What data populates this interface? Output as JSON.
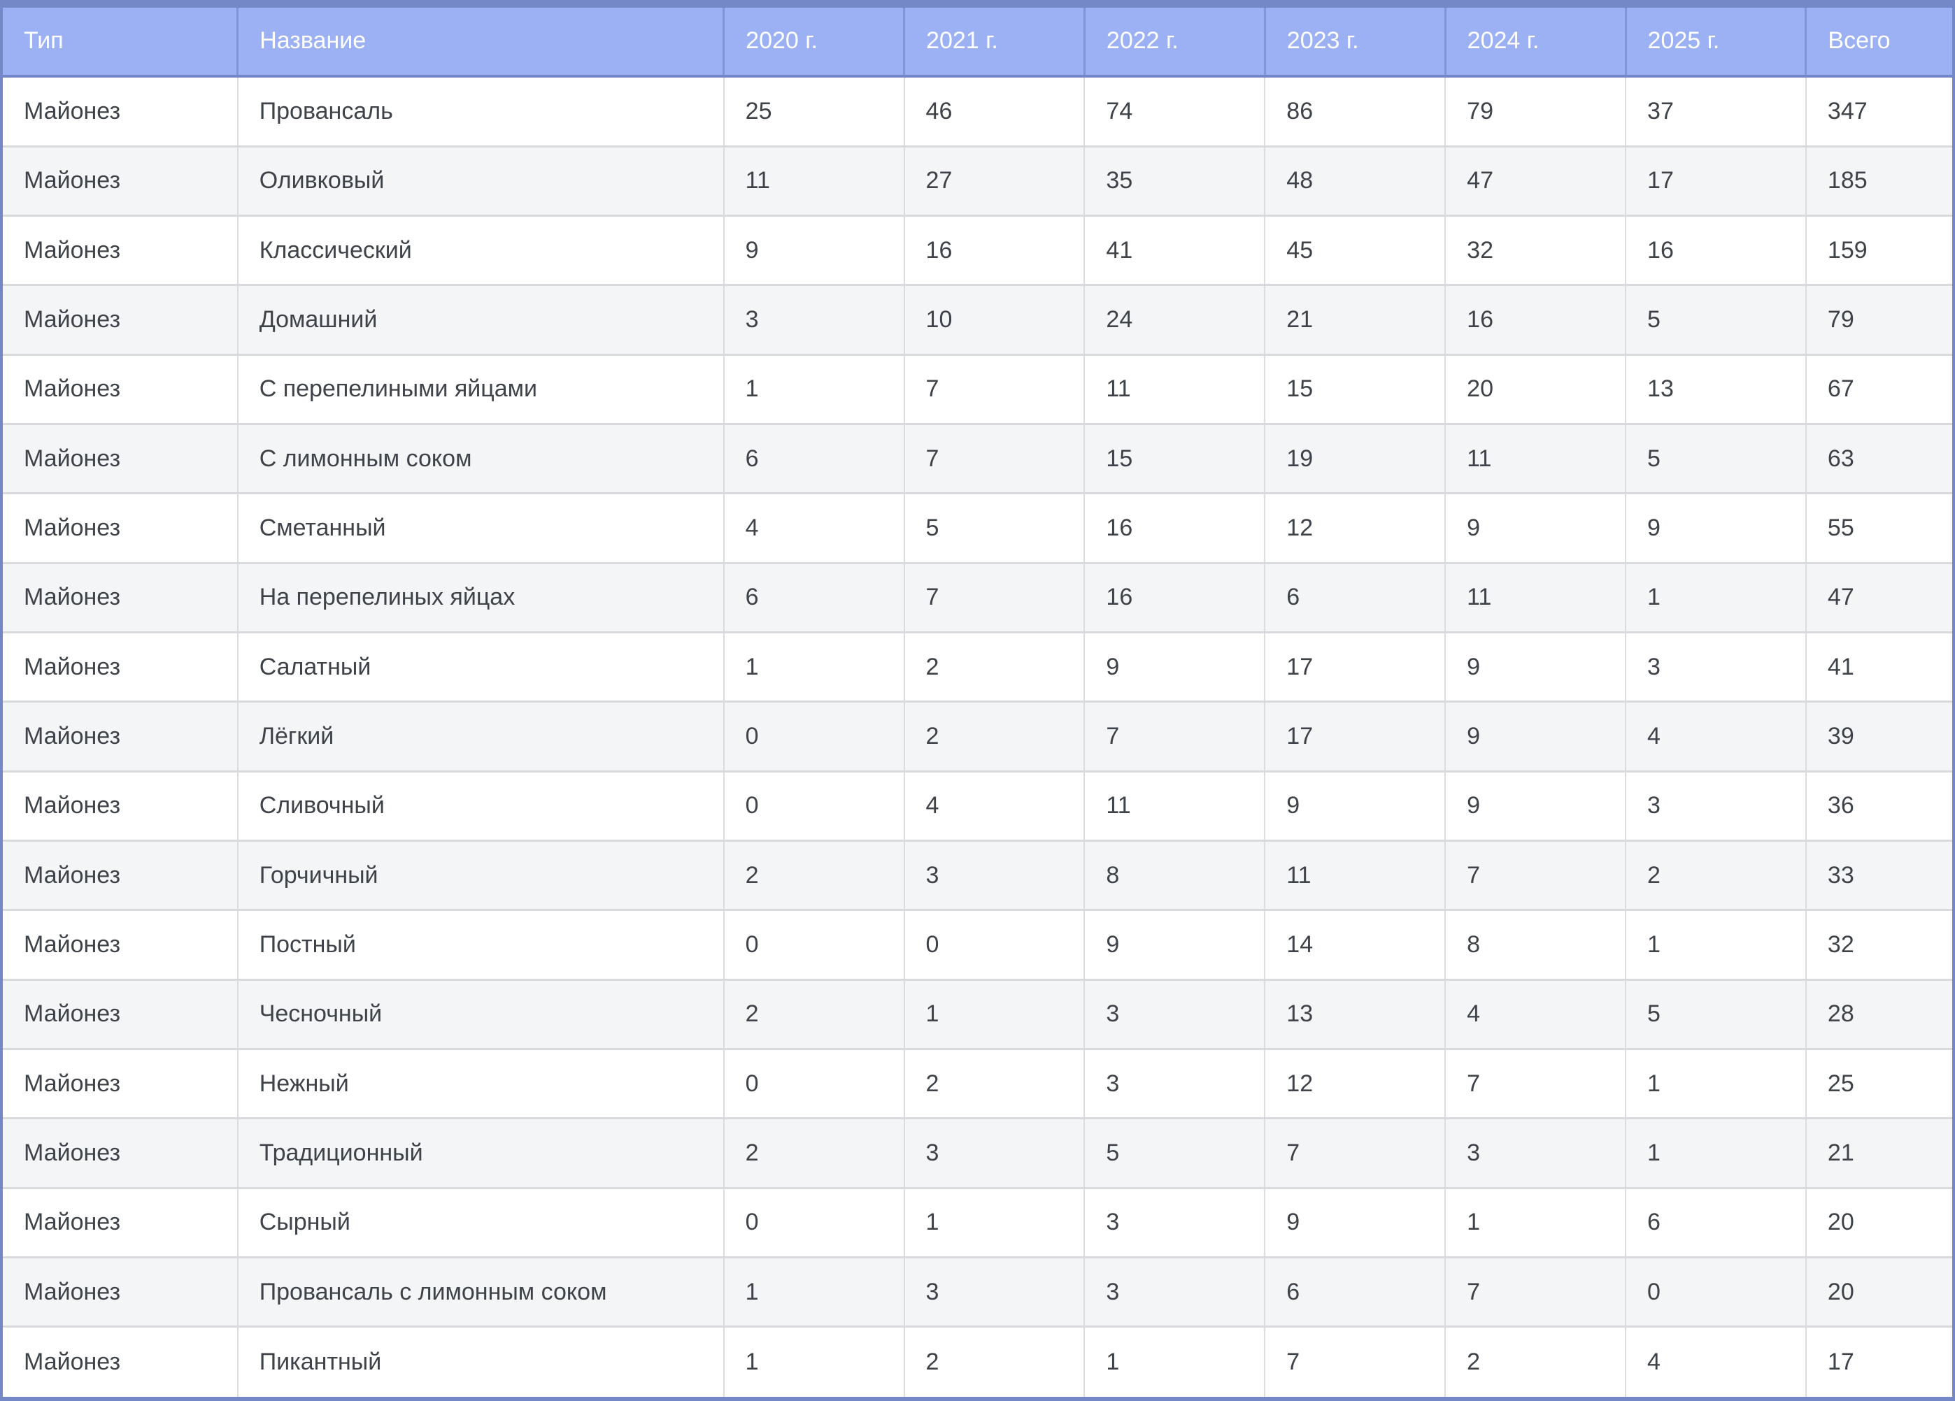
{
  "colors": {
    "header_bg": "#9CB1F3",
    "header_text": "#FFFFFF",
    "header_divider": "#8094D9",
    "outer_border": "#7487C6",
    "body_text": "#3E4349",
    "cell_divider": "#DADCE0",
    "row_divider": "#D8DADD",
    "row_alt_bg": "#F4F5F7",
    "row_bg": "#FFFFFF"
  },
  "table": {
    "columns": [
      {
        "label": "Тип"
      },
      {
        "label": "Название"
      },
      {
        "label": "2020 г."
      },
      {
        "label": "2021 г."
      },
      {
        "label": "2022 г."
      },
      {
        "label": "2023 г."
      },
      {
        "label": "2024 г."
      },
      {
        "label": "2025 г."
      },
      {
        "label": "Всего"
      }
    ],
    "rows": [
      {
        "cells": [
          "Майонез",
          "Провансаль",
          25,
          46,
          74,
          86,
          79,
          37,
          347
        ]
      },
      {
        "cells": [
          "Майонез",
          "Оливковый",
          11,
          27,
          35,
          48,
          47,
          17,
          185
        ]
      },
      {
        "cells": [
          "Майонез",
          "Классический",
          9,
          16,
          41,
          45,
          32,
          16,
          159
        ]
      },
      {
        "cells": [
          "Майонез",
          "Домашний",
          3,
          10,
          24,
          21,
          16,
          5,
          79
        ]
      },
      {
        "cells": [
          "Майонез",
          "С перепелиными яйцами",
          1,
          7,
          11,
          15,
          20,
          13,
          67
        ]
      },
      {
        "cells": [
          "Майонез",
          "С лимонным соком",
          6,
          7,
          15,
          19,
          11,
          5,
          63
        ]
      },
      {
        "cells": [
          "Майонез",
          "Сметанный",
          4,
          5,
          16,
          12,
          9,
          9,
          55
        ]
      },
      {
        "cells": [
          "Майонез",
          "На перепелиных яйцах",
          6,
          7,
          16,
          6,
          11,
          1,
          47
        ]
      },
      {
        "cells": [
          "Майонез",
          "Салатный",
          1,
          2,
          9,
          17,
          9,
          3,
          41
        ]
      },
      {
        "cells": [
          "Майонез",
          "Лёгкий",
          0,
          2,
          7,
          17,
          9,
          4,
          39
        ]
      },
      {
        "cells": [
          "Майонез",
          "Сливочный",
          0,
          4,
          11,
          9,
          9,
          3,
          36
        ]
      },
      {
        "cells": [
          "Майонез",
          "Горчичный",
          2,
          3,
          8,
          11,
          7,
          2,
          33
        ]
      },
      {
        "cells": [
          "Майонез",
          "Постный",
          0,
          0,
          9,
          14,
          8,
          1,
          32
        ]
      },
      {
        "cells": [
          "Майонез",
          "Чесночный",
          2,
          1,
          3,
          13,
          4,
          5,
          28
        ]
      },
      {
        "cells": [
          "Майонез",
          "Нежный",
          0,
          2,
          3,
          12,
          7,
          1,
          25
        ]
      },
      {
        "cells": [
          "Майонез",
          "Традиционный",
          2,
          3,
          5,
          7,
          3,
          1,
          21
        ]
      },
      {
        "cells": [
          "Майонез",
          "Сырный",
          0,
          1,
          3,
          9,
          1,
          6,
          20
        ]
      },
      {
        "cells": [
          "Майонез",
          "Провансаль с лимонным соком",
          1,
          3,
          3,
          6,
          7,
          0,
          20
        ]
      },
      {
        "cells": [
          "Майонез",
          "Пикантный",
          1,
          2,
          1,
          7,
          2,
          4,
          17
        ]
      }
    ]
  },
  "chart_data": {
    "type": "table",
    "title": "",
    "columns": [
      "Тип",
      "Название",
      "2020 г.",
      "2021 г.",
      "2022 г.",
      "2023 г.",
      "2024 г.",
      "2025 г.",
      "Всего"
    ],
    "rows": [
      [
        "Майонез",
        "Провансаль",
        25,
        46,
        74,
        86,
        79,
        37,
        347
      ],
      [
        "Майонез",
        "Оливковый",
        11,
        27,
        35,
        48,
        47,
        17,
        185
      ],
      [
        "Майонез",
        "Классический",
        9,
        16,
        41,
        45,
        32,
        16,
        159
      ],
      [
        "Майонез",
        "Домашний",
        3,
        10,
        24,
        21,
        16,
        5,
        79
      ],
      [
        "Майонез",
        "С перепелиными яйцами",
        1,
        7,
        11,
        15,
        20,
        13,
        67
      ],
      [
        "Майонез",
        "С лимонным соком",
        6,
        7,
        15,
        19,
        11,
        5,
        63
      ],
      [
        "Майонез",
        "Сметанный",
        4,
        5,
        16,
        12,
        9,
        9,
        55
      ],
      [
        "Майонез",
        "На перепелиных яйцах",
        6,
        7,
        16,
        6,
        11,
        1,
        47
      ],
      [
        "Майонез",
        "Салатный",
        1,
        2,
        9,
        17,
        9,
        3,
        41
      ],
      [
        "Майонез",
        "Лёгкий",
        0,
        2,
        7,
        17,
        9,
        4,
        39
      ],
      [
        "Майонез",
        "Сливочный",
        0,
        4,
        11,
        9,
        9,
        3,
        36
      ],
      [
        "Майонез",
        "Горчичный",
        2,
        3,
        8,
        11,
        7,
        2,
        33
      ],
      [
        "Майонез",
        "Постный",
        0,
        0,
        9,
        14,
        8,
        1,
        32
      ],
      [
        "Майонез",
        "Чесночный",
        2,
        1,
        3,
        13,
        4,
        5,
        28
      ],
      [
        "Майонез",
        "Нежный",
        0,
        2,
        3,
        12,
        7,
        1,
        25
      ],
      [
        "Майонез",
        "Традиционный",
        2,
        3,
        5,
        7,
        3,
        1,
        21
      ],
      [
        "Майонез",
        "Сырный",
        0,
        1,
        3,
        9,
        1,
        6,
        20
      ],
      [
        "Майонез",
        "Провансаль с лимонным соком",
        1,
        3,
        3,
        6,
        7,
        0,
        20
      ],
      [
        "Майонез",
        "Пикантный",
        1,
        2,
        1,
        7,
        2,
        4,
        17
      ]
    ],
    "layout_hints": {
      "zebra_striping": true,
      "header_position": "top",
      "numeric_alignment": "left",
      "grid": true
    }
  }
}
